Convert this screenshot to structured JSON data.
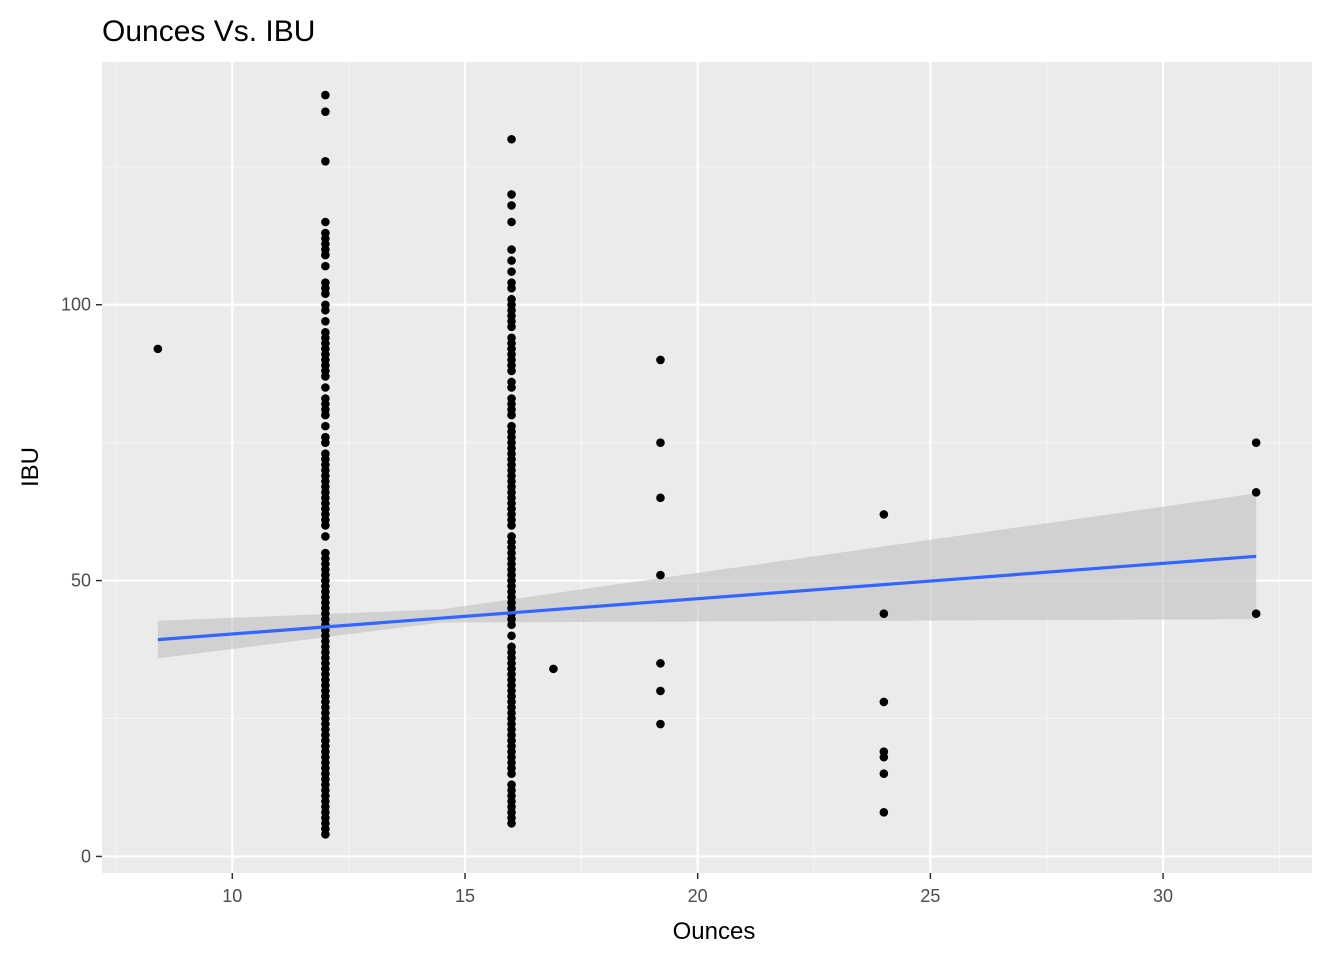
{
  "colors": {
    "panel": "#ebebeb",
    "grid_major": "#ffffff",
    "grid_minor": "#f5f5f5",
    "point": "#000000",
    "line": "#3366ff",
    "ribbon": "#bfbfbf"
  },
  "chart_data": {
    "type": "scatter",
    "title": "Ounces Vs. IBU",
    "xlabel": "Ounces",
    "ylabel": "IBU",
    "xlim": [
      7.2,
      33.2
    ],
    "ylim": [
      -3,
      144
    ],
    "x_ticks": [
      10,
      15,
      20,
      25,
      30
    ],
    "y_ticks": [
      0,
      50,
      100
    ],
    "grid": true,
    "legend": "none",
    "groups": [
      {
        "x": 8.4,
        "y": [
          92
        ]
      },
      {
        "x": 12,
        "y": [
          4,
          5,
          6,
          7,
          8,
          9,
          10,
          11,
          12,
          13,
          14,
          15,
          16,
          17,
          18,
          19,
          20,
          21,
          22,
          23,
          24,
          25,
          26,
          27,
          28,
          29,
          30,
          31,
          32,
          33,
          34,
          35,
          36,
          37,
          38,
          39,
          40,
          41,
          42,
          43,
          44,
          45,
          46,
          47,
          48,
          49,
          50,
          51,
          52,
          53,
          54,
          55,
          58,
          60,
          61,
          62,
          63,
          64,
          65,
          66,
          67,
          68,
          69,
          70,
          71,
          72,
          73,
          75,
          76,
          78,
          80,
          81,
          82,
          83,
          85,
          87,
          88,
          89,
          90,
          91,
          92,
          93,
          94,
          95,
          97,
          99,
          100,
          102,
          103,
          104,
          107,
          109,
          110,
          111,
          112,
          113,
          115,
          126,
          135,
          138
        ]
      },
      {
        "x": 16,
        "y": [
          6,
          7,
          8,
          9,
          10,
          11,
          12,
          13,
          15,
          16,
          17,
          18,
          19,
          20,
          21,
          22,
          23,
          24,
          25,
          26,
          27,
          28,
          29,
          30,
          31,
          32,
          33,
          34,
          35,
          36,
          37,
          38,
          40,
          42,
          43,
          44,
          45,
          46,
          47,
          48,
          49,
          50,
          51,
          52,
          53,
          54,
          55,
          56,
          57,
          58,
          60,
          61,
          62,
          63,
          64,
          65,
          66,
          67,
          68,
          69,
          70,
          71,
          72,
          73,
          74,
          75,
          76,
          77,
          78,
          80,
          81,
          82,
          83,
          85,
          86,
          88,
          89,
          90,
          91,
          92,
          93,
          94,
          96,
          97,
          98,
          99,
          100,
          101,
          103,
          104,
          106,
          108,
          110,
          115,
          118,
          120,
          130
        ]
      },
      {
        "x": 16.9,
        "y": [
          34
        ]
      },
      {
        "x": 19.2,
        "y": [
          24,
          30,
          35,
          51,
          65,
          75,
          90
        ]
      },
      {
        "x": 24,
        "y": [
          8,
          15,
          18,
          19,
          28,
          44,
          62
        ]
      },
      {
        "x": 32,
        "y": [
          44,
          66,
          75
        ]
      }
    ],
    "trend": {
      "method": "linear",
      "x": [
        8.4,
        32
      ],
      "y": [
        39.3,
        54.4
      ],
      "ci_lower": [
        35.9,
        43.0
      ],
      "ci_upper": [
        42.7,
        65.8
      ],
      "ci_mid_x": 14.5,
      "ci_mid_lower": 42.4,
      "ci_mid_upper": 44.8
    }
  }
}
